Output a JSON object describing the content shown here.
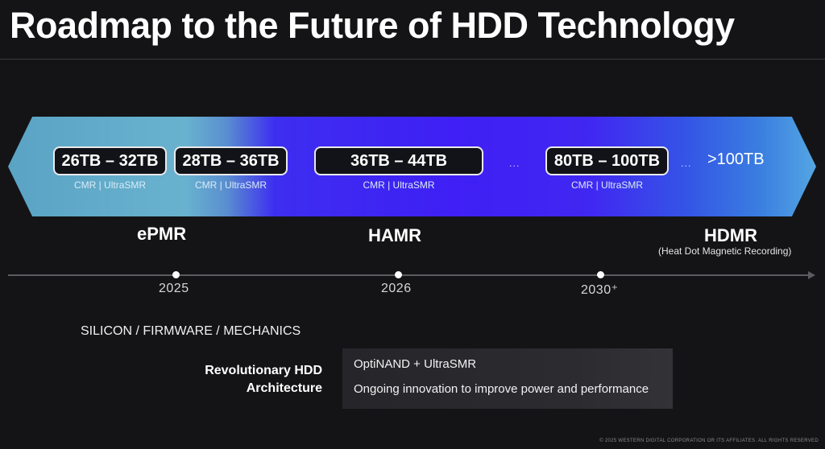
{
  "title": "Roadmap to the Future of HDD Technology",
  "capacities": [
    {
      "label": "26TB – 32TB",
      "sub": "CMR | UltraSMR"
    },
    {
      "label": "28TB – 36TB",
      "sub": "CMR | UltraSMR"
    },
    {
      "label": "36TB – 44TB",
      "sub": "CMR | UltraSMR"
    },
    {
      "label": "80TB – 100TB",
      "sub": "CMR | UltraSMR"
    },
    {
      "label": ">100TB"
    }
  ],
  "ellipsis": "...",
  "technologies": [
    {
      "label": "ePMR"
    },
    {
      "label": "HAMR"
    },
    {
      "label": "HDMR",
      "subtitle": "(Heat Dot Magnetic Recording)"
    }
  ],
  "timeline": {
    "years": [
      "2025",
      "2026",
      "2030⁺"
    ]
  },
  "foundation": {
    "heading": "SILICON / FIRMWARE / MECHANICS",
    "architecture_lines": [
      "Revolutionary HDD",
      "Architecture"
    ],
    "items": [
      "OptiNAND + UltraSMR",
      "Ongoing innovation to improve power and performance"
    ]
  },
  "copyright": "© 2025 WESTERN DIGITAL CORPORATION OR ITS AFFILIATES. ALL RIGHTS RESERVED",
  "colors": {
    "background": "#141416",
    "arrow_left": "#69b2cf",
    "arrow_mid": "#3f1ff5",
    "arrow_right": "#54a6e3"
  }
}
